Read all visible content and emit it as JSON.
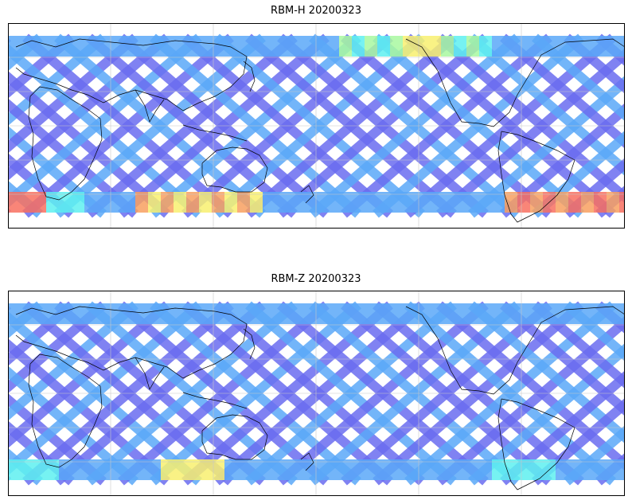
{
  "panels": [
    {
      "id": "rbm-h",
      "title": "RBM-H 20200323"
    },
    {
      "id": "rbm-z",
      "title": "RBM-Z 20200323"
    }
  ],
  "colors": {
    "low": "#6a6cf0",
    "mid": "#5aa8f8",
    "cyan": "#5ef0f0",
    "green": "#a8f8a0",
    "yellow": "#f8f070",
    "orange": "#f8a060",
    "red": "#f87060",
    "coast": "#000000",
    "grid": "#c8c8c8"
  }
}
